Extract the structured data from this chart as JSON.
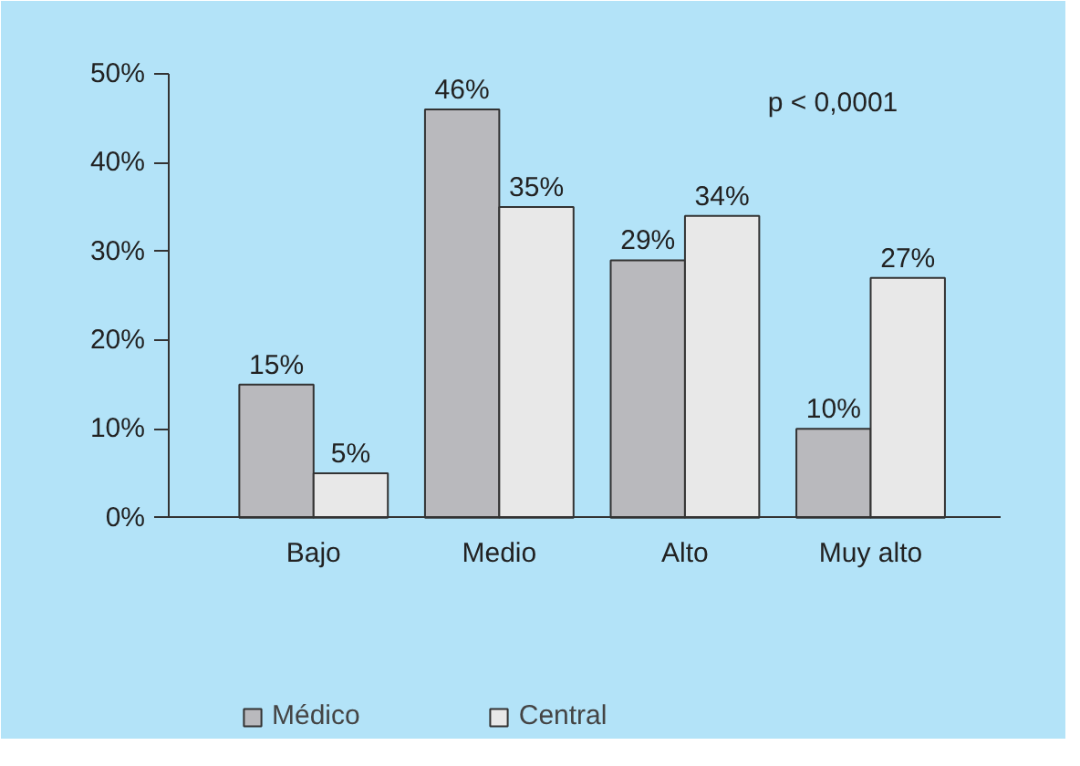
{
  "chart_data": {
    "type": "bar",
    "categories": [
      "Bajo",
      "Medio",
      "Alto",
      "Muy alto"
    ],
    "series": [
      {
        "name": "Médico",
        "color": "#b9b9bd",
        "values": [
          15,
          46,
          29,
          10
        ]
      },
      {
        "name": "Central",
        "color": "#e8e8e8",
        "values": [
          5,
          35,
          34,
          27
        ]
      }
    ],
    "ylim": [
      0,
      50
    ],
    "yticks": [
      {
        "value": 0,
        "label": "0%"
      },
      {
        "value": 10,
        "label": "10%"
      },
      {
        "value": 20,
        "label": "20%"
      },
      {
        "value": 30,
        "label": "30%"
      },
      {
        "value": 40,
        "label": "40%"
      },
      {
        "value": 50,
        "label": "50%"
      }
    ],
    "value_labels": [
      [
        "15%",
        "46%",
        "29%",
        "10%"
      ],
      [
        "5%",
        "35%",
        "34%",
        "27%"
      ]
    ],
    "annotations": [
      "p < 0,0001"
    ],
    "grid": false,
    "legend": "bottom"
  }
}
